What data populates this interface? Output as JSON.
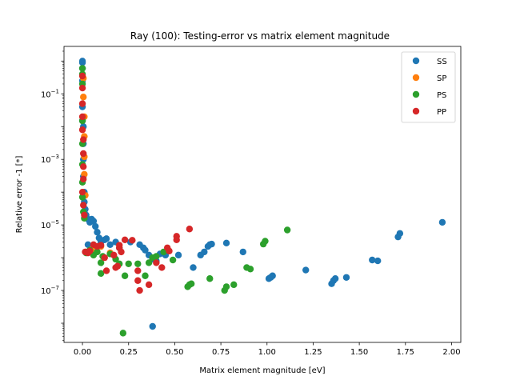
{
  "chart_data": {
    "type": "scatter",
    "title": "Ray (100): Testing-error vs matrix element magnitude",
    "xlabel": "Matrix element magnitude [eV]",
    "ylabel": "Relative error -1 [*]",
    "xlim": [
      -0.1,
      2.05
    ],
    "ylim": [
      2.6e-09,
      2.8
    ],
    "yscale": "log",
    "xticks": [
      "0.00",
      "0.25",
      "0.50",
      "0.75",
      "1.00",
      "1.25",
      "1.50",
      "1.75",
      "2.00"
    ],
    "xtick_values": [
      0,
      0.25,
      0.5,
      0.75,
      1.0,
      1.25,
      1.5,
      1.75,
      2.0
    ],
    "yticks": [
      "10^-7",
      "10^-5",
      "10^-3",
      "10^-1"
    ],
    "ytick_values": [
      1e-07,
      1e-05,
      0.001,
      0.1
    ],
    "legend_position": "upper right",
    "grid": false,
    "series": [
      {
        "name": "SS",
        "color": "#1f77b4",
        "points": [
          [
            0.0,
            1.0
          ],
          [
            0.0,
            0.9
          ],
          [
            0.0,
            0.6
          ],
          [
            0.0,
            0.25
          ],
          [
            0.0,
            0.04
          ],
          [
            0.0,
            0.015
          ],
          [
            0.005,
            0.01
          ],
          [
            0.005,
            0.003
          ],
          [
            0.005,
            0.001
          ],
          [
            0.005,
            0.0003
          ],
          [
            0.01,
            0.0001
          ],
          [
            0.01,
            5e-05
          ],
          [
            0.015,
            3e-05
          ],
          [
            0.02,
            2e-05
          ],
          [
            0.03,
            1.5e-05
          ],
          [
            0.04,
            1.2e-05
          ],
          [
            0.05,
            1.5e-05
          ],
          [
            0.06,
            1.3e-05
          ],
          [
            0.07,
            9e-06
          ],
          [
            0.08,
            6e-06
          ],
          [
            0.09,
            4e-06
          ],
          [
            0.1,
            3e-06
          ],
          [
            0.12,
            3.5e-06
          ],
          [
            0.13,
            3.8e-06
          ],
          [
            0.15,
            2.5e-06
          ],
          [
            0.18,
            3e-06
          ],
          [
            0.2,
            2e-06
          ],
          [
            0.26,
            3e-06
          ],
          [
            0.31,
            2.5e-06
          ],
          [
            0.33,
            2e-06
          ],
          [
            0.34,
            1.7e-06
          ],
          [
            0.36,
            1.2e-06
          ],
          [
            0.38,
            9e-07
          ],
          [
            0.4,
            8e-07
          ],
          [
            0.42,
            1.3e-06
          ],
          [
            0.45,
            1.2e-06
          ],
          [
            0.52,
            1.2e-06
          ],
          [
            0.6,
            5e-07
          ],
          [
            0.64,
            1.2e-06
          ],
          [
            0.66,
            1.5e-06
          ],
          [
            0.68,
            2.2e-06
          ],
          [
            0.69,
            2.5e-06
          ],
          [
            0.7,
            2.6e-06
          ],
          [
            0.78,
            2.8e-06
          ],
          [
            0.87,
            1.5e-06
          ],
          [
            1.01,
            2.3e-07
          ],
          [
            1.03,
            2.8e-07
          ],
          [
            1.02,
            2.5e-07
          ],
          [
            1.21,
            4.2e-07
          ],
          [
            1.35,
            1.6e-07
          ],
          [
            1.36,
            2e-07
          ],
          [
            1.37,
            2.3e-07
          ],
          [
            1.43,
            2.5e-07
          ],
          [
            1.57,
            8.5e-07
          ],
          [
            1.6,
            8e-07
          ],
          [
            1.71,
            4.3e-06
          ],
          [
            1.72,
            5.5e-06
          ],
          [
            1.95,
            1.2e-05
          ],
          [
            0.38,
            8e-09
          ],
          [
            0.03,
            2.5e-06
          ],
          [
            0.05,
            2e-06
          ]
        ]
      },
      {
        "name": "SP",
        "color": "#ff7f0e",
        "points": [
          [
            0.005,
            0.3
          ],
          [
            0.005,
            0.08
          ],
          [
            0.01,
            0.02
          ],
          [
            0.01,
            0.005
          ],
          [
            0.01,
            0.0012
          ],
          [
            0.01,
            0.00035
          ],
          [
            0.015,
            8e-05
          ],
          [
            0.02,
            1.5e-06
          ],
          [
            0.05,
            1.8e-06
          ],
          [
            0.1,
            2.2e-06
          ],
          [
            0.15,
            1.4e-06
          ]
        ]
      },
      {
        "name": "PS",
        "color": "#2ca02c",
        "points": [
          [
            0.0,
            0.6
          ],
          [
            0.0,
            0.4
          ],
          [
            0.0,
            0.2
          ],
          [
            0.0,
            0.015
          ],
          [
            0.0,
            0.003
          ],
          [
            0.0,
            0.0007
          ],
          [
            0.0,
            0.0002
          ],
          [
            0.0,
            7e-05
          ],
          [
            0.005,
            2.5e-05
          ],
          [
            0.01,
            1.6e-05
          ],
          [
            0.02,
            1.4e-06
          ],
          [
            0.03,
            1.5e-06
          ],
          [
            0.04,
            1.7e-06
          ],
          [
            0.06,
            1.2e-06
          ],
          [
            0.08,
            1.5e-06
          ],
          [
            0.1,
            7e-07
          ],
          [
            0.11,
            1.1e-06
          ],
          [
            0.1,
            3.3e-07
          ],
          [
            0.15,
            1.3e-06
          ],
          [
            0.18,
            9e-07
          ],
          [
            0.2,
            6.5e-07
          ],
          [
            0.23,
            2.8e-07
          ],
          [
            0.25,
            6.5e-07
          ],
          [
            0.3,
            6.5e-07
          ],
          [
            0.34,
            2.8e-07
          ],
          [
            0.36,
            7e-07
          ],
          [
            0.38,
            1e-06
          ],
          [
            0.4,
            1.1e-06
          ],
          [
            0.44,
            1.5e-06
          ],
          [
            0.49,
            8.5e-07
          ],
          [
            0.57,
            1.3e-07
          ],
          [
            0.58,
            1.5e-07
          ],
          [
            0.59,
            1.6e-07
          ],
          [
            0.69,
            2.3e-07
          ],
          [
            0.77,
            1e-07
          ],
          [
            0.78,
            1.3e-07
          ],
          [
            0.82,
            1.5e-07
          ],
          [
            0.89,
            5e-07
          ],
          [
            0.91,
            4.5e-07
          ],
          [
            0.98,
            2.6e-06
          ],
          [
            0.99,
            3.2e-06
          ],
          [
            1.11,
            7e-06
          ],
          [
            0.22,
            5e-09
          ]
        ]
      },
      {
        "name": "PP",
        "color": "#d62728",
        "points": [
          [
            0.0,
            0.35
          ],
          [
            0.0,
            0.15
          ],
          [
            0.0,
            0.05
          ],
          [
            0.0,
            0.02
          ],
          [
            0.0,
            0.008
          ],
          [
            0.005,
            0.004
          ],
          [
            0.005,
            0.0015
          ],
          [
            0.005,
            0.0006
          ],
          [
            0.005,
            0.00025
          ],
          [
            0.0,
            0.0001
          ],
          [
            0.005,
            4e-05
          ],
          [
            0.01,
            2e-05
          ],
          [
            0.015,
            1.5e-06
          ],
          [
            0.03,
            1.4e-06
          ],
          [
            0.04,
            1.6e-06
          ],
          [
            0.06,
            2.5e-06
          ],
          [
            0.08,
            2.2e-06
          ],
          [
            0.1,
            2.4e-06
          ],
          [
            0.12,
            1e-06
          ],
          [
            0.13,
            4e-07
          ],
          [
            0.17,
            1.2e-06
          ],
          [
            0.18,
            5e-07
          ],
          [
            0.2,
            2e-06
          ],
          [
            0.19,
            5.5e-07
          ],
          [
            0.21,
            1.5e-06
          ],
          [
            0.23,
            3.5e-06
          ],
          [
            0.27,
            3.4e-06
          ],
          [
            0.3,
            4e-07
          ],
          [
            0.3,
            2e-07
          ],
          [
            0.31,
            1e-07
          ],
          [
            0.36,
            1.5e-07
          ],
          [
            0.4,
            7e-07
          ],
          [
            0.43,
            5e-07
          ],
          [
            0.46,
            2e-06
          ],
          [
            0.47,
            1.6e-06
          ],
          [
            0.51,
            3.5e-06
          ],
          [
            0.51,
            4.5e-06
          ],
          [
            0.58,
            7.5e-06
          ],
          [
            0.2,
            2.4e-06
          ]
        ]
      }
    ]
  }
}
